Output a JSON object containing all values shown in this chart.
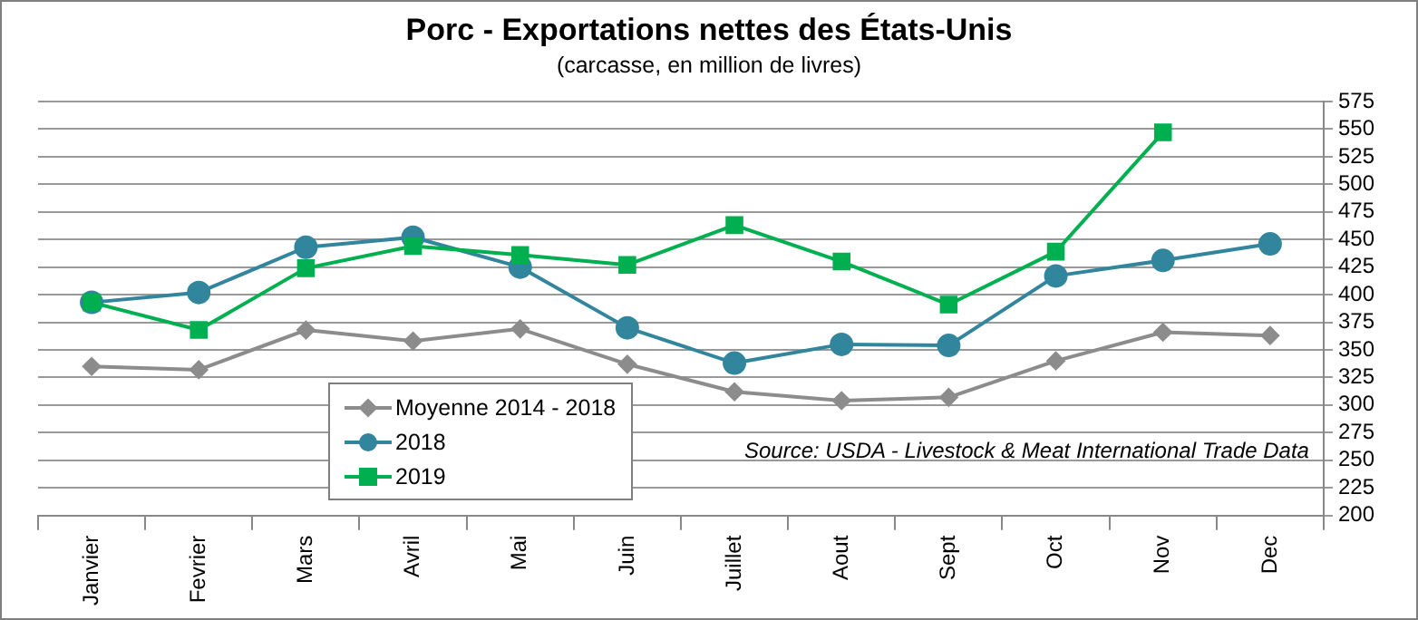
{
  "chart_data": {
    "type": "line",
    "title": "Porc - Exportations nettes des États-Unis",
    "subtitle": "(carcasse, en million de livres)",
    "categories": [
      "Janvier",
      "Fevrier",
      "Mars",
      "Avril",
      "Mai",
      "Juin",
      "Juillet",
      "Aout",
      "Sept",
      "Oct",
      "Nov",
      "Dec"
    ],
    "series": [
      {
        "name": "Moyenne 2014 - 2018",
        "color": "#8c8c8c",
        "marker": "diamond",
        "values": [
          335,
          332,
          368,
          358,
          369,
          337,
          312,
          304,
          307,
          340,
          366,
          363
        ]
      },
      {
        "name": "2018",
        "color": "#31859c",
        "marker": "circle",
        "values": [
          393,
          402,
          443,
          452,
          425,
          370,
          338,
          355,
          354,
          417,
          431,
          446
        ]
      },
      {
        "name": "2019",
        "color": "#00b050",
        "marker": "square",
        "values": [
          393,
          368,
          424,
          444,
          436,
          427,
          463,
          430,
          391,
          439,
          547,
          null
        ]
      }
    ],
    "ylim": [
      200,
      575
    ],
    "yticks": [
      200,
      225,
      250,
      275,
      300,
      325,
      350,
      375,
      400,
      425,
      450,
      475,
      500,
      525,
      550,
      575
    ],
    "grid": "y",
    "legend": "bottom left",
    "annotations": [
      "Source: USDA - Livestock & Meat International Trade Data"
    ]
  }
}
